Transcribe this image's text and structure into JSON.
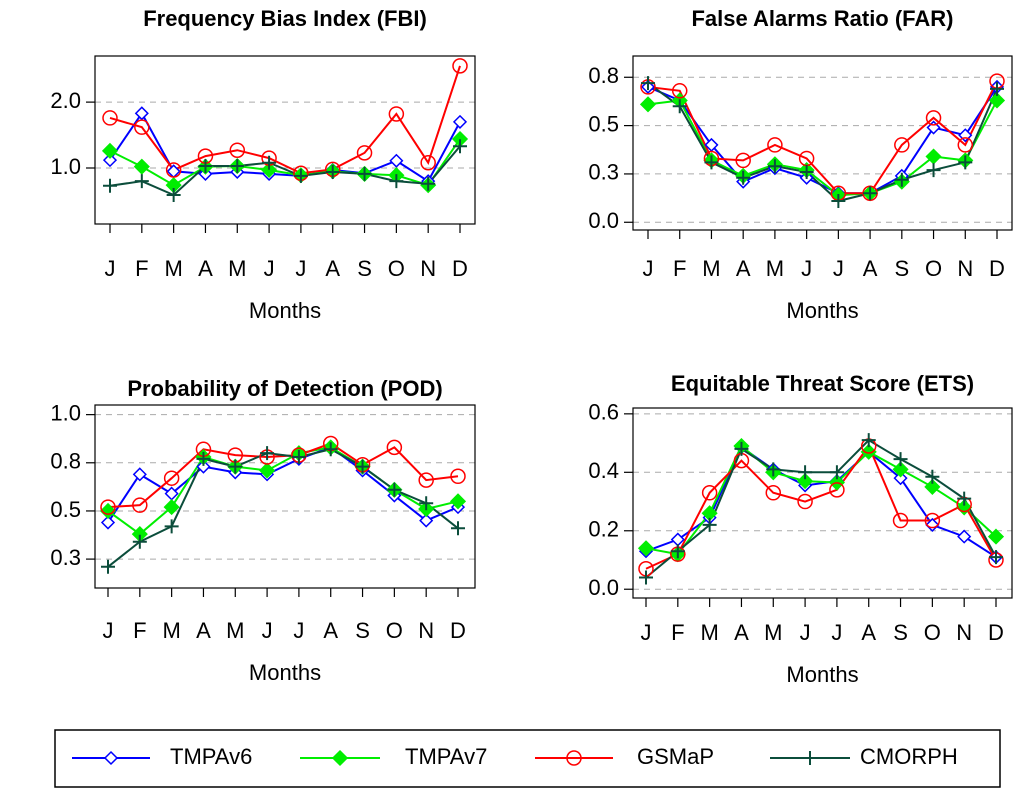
{
  "chart_data": [
    {
      "type": "line",
      "title": "Frequency Bias Index (FBI)",
      "x_label": "Months",
      "categories": [
        "J",
        "F",
        "M",
        "A",
        "M",
        "J",
        "J",
        "A",
        "S",
        "O",
        "N",
        "D"
      ],
      "ylim": [
        0.15,
        2.7
      ],
      "yticks": [
        {
          "value": 1,
          "label": "1.0"
        },
        {
          "value": 2,
          "label": "2.0"
        }
      ],
      "grid": true,
      "series": [
        {
          "name": "TMPAv6",
          "color": "#0000ff",
          "marker": "diamond-open",
          "values": [
            1.12,
            1.83,
            0.95,
            0.91,
            0.94,
            0.91,
            0.88,
            0.97,
            0.92,
            1.11,
            0.8,
            1.7
          ]
        },
        {
          "name": "TMPAv7",
          "color": "#00ee00",
          "marker": "diamond",
          "values": [
            1.26,
            1.02,
            0.74,
            1.02,
            1.03,
            0.97,
            0.89,
            0.95,
            0.91,
            0.89,
            0.74,
            1.44
          ]
        },
        {
          "name": "GSMaP",
          "color": "#ff0000",
          "marker": "circle-open",
          "values": [
            1.76,
            1.62,
            0.97,
            1.18,
            1.27,
            1.15,
            0.92,
            0.98,
            1.23,
            1.82,
            1.08,
            2.55
          ]
        },
        {
          "name": "CMORPH",
          "color": "#0b4d3b",
          "marker": "plus",
          "values": [
            0.73,
            0.8,
            0.59,
            1.03,
            1.03,
            1.08,
            0.88,
            0.94,
            0.91,
            0.8,
            0.76,
            1.33
          ]
        }
      ]
    },
    {
      "type": "line",
      "title": "False Alarms Ratio (FAR)",
      "x_label": "Months",
      "categories": [
        "J",
        "F",
        "M",
        "A",
        "M",
        "J",
        "J",
        "A",
        "S",
        "O",
        "N",
        "D"
      ],
      "ylim": [
        -0.04,
        0.86
      ],
      "yticks": [
        {
          "value": 0,
          "label": "0.0"
        },
        {
          "value": 0.25,
          "label": "0.3"
        },
        {
          "value": 0.5,
          "label": "0.5"
        },
        {
          "value": 0.75,
          "label": "0.8"
        }
      ],
      "grid": true,
      "series": [
        {
          "name": "TMPAv6",
          "color": "#0000ff",
          "marker": "diamond-open",
          "values": [
            0.7,
            0.63,
            0.4,
            0.21,
            0.28,
            0.23,
            0.15,
            0.15,
            0.24,
            0.49,
            0.45,
            0.7
          ]
        },
        {
          "name": "TMPAv7",
          "color": "#00ee00",
          "marker": "diamond",
          "values": [
            0.61,
            0.63,
            0.32,
            0.24,
            0.3,
            0.27,
            0.14,
            0.15,
            0.21,
            0.34,
            0.32,
            0.63
          ]
        },
        {
          "name": "GSMaP",
          "color": "#ff0000",
          "marker": "circle-open",
          "values": [
            0.7,
            0.68,
            0.33,
            0.32,
            0.4,
            0.33,
            0.15,
            0.15,
            0.4,
            0.54,
            0.4,
            0.73
          ]
        },
        {
          "name": "CMORPH",
          "color": "#0b4d3b",
          "marker": "plus",
          "values": [
            0.72,
            0.6,
            0.31,
            0.23,
            0.29,
            0.26,
            0.11,
            0.15,
            0.22,
            0.27,
            0.31,
            0.69
          ]
        }
      ]
    },
    {
      "type": "line",
      "title": "Probability of Detection (POD)",
      "x_label": "Months",
      "categories": [
        "J",
        "F",
        "M",
        "A",
        "M",
        "J",
        "J",
        "A",
        "S",
        "O",
        "N",
        "D"
      ],
      "ylim": [
        0.1,
        1.05
      ],
      "yticks": [
        {
          "value": 0.25,
          "label": "0.3"
        },
        {
          "value": 0.5,
          "label": "0.5"
        },
        {
          "value": 0.75,
          "label": "0.8"
        },
        {
          "value": 1,
          "label": "1.0"
        }
      ],
      "grid": true,
      "series": [
        {
          "name": "TMPAv6",
          "color": "#0000ff",
          "marker": "diamond-open",
          "values": [
            0.44,
            0.69,
            0.59,
            0.73,
            0.7,
            0.69,
            0.77,
            0.83,
            0.71,
            0.58,
            0.45,
            0.52
          ]
        },
        {
          "name": "TMPAv7",
          "color": "#00ee00",
          "marker": "diamond",
          "values": [
            0.5,
            0.38,
            0.52,
            0.78,
            0.73,
            0.71,
            0.8,
            0.83,
            0.73,
            0.61,
            0.51,
            0.55
          ]
        },
        {
          "name": "GSMaP",
          "color": "#ff0000",
          "marker": "circle-open",
          "values": [
            0.52,
            0.53,
            0.67,
            0.82,
            0.79,
            0.78,
            0.79,
            0.85,
            0.74,
            0.83,
            0.66,
            0.68
          ]
        },
        {
          "name": "CMORPH",
          "color": "#0b4d3b",
          "marker": "plus",
          "values": [
            0.21,
            0.34,
            0.42,
            0.77,
            0.73,
            0.8,
            0.78,
            0.82,
            0.73,
            0.61,
            0.54,
            0.41
          ]
        }
      ]
    },
    {
      "type": "line",
      "title": "Equitable Threat Score (ETS)",
      "x_label": "Months",
      "categories": [
        "J",
        "F",
        "M",
        "A",
        "M",
        "J",
        "J",
        "A",
        "S",
        "O",
        "N",
        "D"
      ],
      "ylim": [
        -0.03,
        0.62
      ],
      "yticks": [
        {
          "value": 0,
          "label": "0.0"
        },
        {
          "value": 0.2,
          "label": "0.2"
        },
        {
          "value": 0.4,
          "label": "0.4"
        },
        {
          "value": 0.6,
          "label": "0.6"
        }
      ],
      "grid": true,
      "series": [
        {
          "name": "TMPAv6",
          "color": "#0000ff",
          "marker": "diamond-open",
          "values": [
            0.13,
            0.17,
            0.245,
            0.486,
            0.41,
            0.355,
            0.37,
            0.47,
            0.38,
            0.22,
            0.18,
            0.11
          ]
        },
        {
          "name": "TMPAv7",
          "color": "#00ee00",
          "marker": "diamond",
          "values": [
            0.14,
            0.12,
            0.26,
            0.49,
            0.4,
            0.37,
            0.365,
            0.47,
            0.41,
            0.35,
            0.28,
            0.18
          ]
        },
        {
          "name": "GSMaP",
          "color": "#ff0000",
          "marker": "circle-open",
          "values": [
            0.07,
            0.12,
            0.33,
            0.44,
            0.33,
            0.3,
            0.34,
            0.49,
            0.235,
            0.235,
            0.29,
            0.1
          ]
        },
        {
          "name": "CMORPH",
          "color": "#0b4d3b",
          "marker": "plus",
          "values": [
            0.04,
            0.13,
            0.22,
            0.48,
            0.41,
            0.4,
            0.4,
            0.51,
            0.445,
            0.385,
            0.31,
            0.11
          ]
        }
      ]
    }
  ]
}
